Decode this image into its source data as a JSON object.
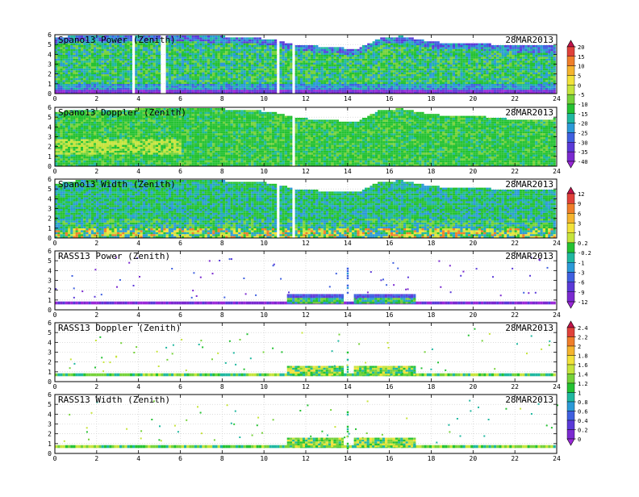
{
  "figure": {
    "date_label": "28MAR2013",
    "panel_titles": [
      "Spano13 Power (Zenith)",
      "Spano13 Doppler (Zenith)",
      "Spano13 Width (Zenith)",
      "RASS13 Power (Zenith)",
      "RASS13 Doppler (Zenith)",
      "RASS13 Width (Zenith)"
    ]
  },
  "chart_data": [
    {
      "type": "heatmap",
      "title": "Spano13 Power (Zenith)",
      "annotation": "28MAR2013",
      "x_ticks": [
        0,
        2,
        4,
        6,
        8,
        10,
        12,
        14,
        16,
        18,
        20,
        22,
        24
      ],
      "y_ticks": [
        0,
        1,
        2,
        3,
        4,
        5,
        6
      ],
      "xlim": [
        0,
        24
      ],
      "ylim": [
        0,
        6
      ],
      "colorbar": "power",
      "coverage": "dense_profiler",
      "top_height_profile": [
        [
          0,
          5.7
        ],
        [
          1,
          6.0
        ],
        [
          2.4,
          5.9
        ],
        [
          6,
          6.0
        ],
        [
          9.4,
          5.8
        ],
        [
          10.5,
          5.5
        ],
        [
          11.6,
          5.0
        ],
        [
          12.5,
          4.9
        ],
        [
          14.4,
          4.6
        ],
        [
          15.5,
          5.7
        ],
        [
          16.5,
          5.9
        ],
        [
          18,
          5.3
        ],
        [
          20,
          5.2
        ],
        [
          22,
          4.9
        ],
        [
          24,
          4.9
        ]
      ],
      "gaps": [
        [
          3.6,
          3.8
        ],
        [
          5.0,
          5.2
        ],
        [
          10.5,
          10.7
        ],
        [
          11.3,
          11.4
        ]
      ]
    },
    {
      "type": "heatmap",
      "title": "Spano13 Doppler (Zenith)",
      "annotation": "28MAR2013",
      "x_ticks": [
        0,
        2,
        4,
        6,
        8,
        10,
        12,
        14,
        16,
        18,
        20,
        22,
        24
      ],
      "y_ticks": [
        0,
        1,
        2,
        3,
        4,
        5,
        6
      ],
      "xlim": [
        0,
        24
      ],
      "ylim": [
        0,
        6
      ],
      "colorbar": "power",
      "coverage": "dense_doppler",
      "top_height_profile": [
        [
          0,
          5.6
        ],
        [
          1,
          5.8
        ],
        [
          2.4,
          5.8
        ],
        [
          6,
          6.0
        ],
        [
          9.4,
          5.8
        ],
        [
          10.5,
          5.5
        ],
        [
          11.6,
          5.0
        ],
        [
          12.5,
          4.8
        ],
        [
          14.4,
          4.6
        ],
        [
          15.5,
          5.8
        ],
        [
          16.5,
          5.9
        ],
        [
          18,
          5.3
        ],
        [
          20,
          5.2
        ],
        [
          22,
          4.8
        ],
        [
          24,
          4.9
        ]
      ],
      "gaps": [
        [
          11.3,
          11.4
        ]
      ]
    },
    {
      "type": "heatmap",
      "title": "Spano13 Width (Zenith)",
      "annotation": "28MAR2013",
      "x_ticks": [
        0,
        2,
        4,
        6,
        8,
        10,
        12,
        14,
        16,
        18,
        20,
        22,
        24
      ],
      "y_ticks": [
        0,
        1,
        2,
        3,
        4,
        5,
        6
      ],
      "xlim": [
        0,
        24
      ],
      "ylim": [
        0,
        6
      ],
      "colorbar": "width",
      "coverage": "dense_width",
      "top_height_profile": [
        [
          0,
          5.6
        ],
        [
          1,
          5.9
        ],
        [
          2.4,
          5.9
        ],
        [
          6,
          6.0
        ],
        [
          9.4,
          5.8
        ],
        [
          10.5,
          5.6
        ],
        [
          11.6,
          5.0
        ],
        [
          12.5,
          4.9
        ],
        [
          14.4,
          4.7
        ],
        [
          15.5,
          5.8
        ],
        [
          16.5,
          5.9
        ],
        [
          18,
          5.3
        ],
        [
          20,
          5.2
        ],
        [
          22,
          4.9
        ],
        [
          24,
          4.9
        ]
      ],
      "gaps": [
        [
          10.5,
          10.7
        ],
        [
          11.3,
          11.4
        ]
      ]
    },
    {
      "type": "heatmap",
      "title": "RASS13 Power (Zenith)",
      "annotation": "28MAR2013",
      "x_ticks": [
        0,
        2,
        4,
        6,
        8,
        10,
        12,
        14,
        16,
        18,
        20,
        22,
        24
      ],
      "y_ticks": [
        0,
        1,
        2,
        3,
        4,
        5,
        6
      ],
      "xlim": [
        0,
        24
      ],
      "ylim": [
        0,
        6
      ],
      "colorbar": "width",
      "coverage": "rass_power",
      "block_hours": [
        [
          11.1,
          13.7
        ],
        [
          14.3,
          17.2
        ]
      ],
      "block_height": [
        0.8,
        1.6
      ]
    },
    {
      "type": "heatmap",
      "title": "RASS13 Doppler (Zenith)",
      "annotation": "28MAR2013",
      "x_ticks": [
        0,
        2,
        4,
        6,
        8,
        10,
        12,
        14,
        16,
        18,
        20,
        22,
        24
      ],
      "y_ticks": [
        0,
        1,
        2,
        3,
        4,
        5,
        6
      ],
      "xlim": [
        0,
        24
      ],
      "ylim": [
        0,
        6
      ],
      "colorbar": "rass",
      "coverage": "rass_doppler",
      "block_hours": [
        [
          11.1,
          13.7
        ],
        [
          14.3,
          17.2
        ]
      ],
      "block_height": [
        0.8,
        1.6
      ]
    },
    {
      "type": "heatmap",
      "title": "RASS13 Width (Zenith)",
      "annotation": "28MAR2013",
      "x_ticks": [
        0,
        2,
        4,
        6,
        8,
        10,
        12,
        14,
        16,
        18,
        20,
        22,
        24
      ],
      "y_ticks": [
        0,
        1,
        2,
        3,
        4,
        5,
        6
      ],
      "xlim": [
        0,
        24
      ],
      "ylim": [
        0,
        6
      ],
      "colorbar": "rass",
      "coverage": "rass_width",
      "block_hours": [
        [
          11.1,
          13.7
        ],
        [
          14.3,
          17.2
        ]
      ],
      "block_height": [
        0.8,
        1.6
      ]
    }
  ],
  "colorbars": {
    "power": {
      "labels": [
        "20",
        "15",
        "10",
        "5",
        "0",
        "-5",
        "-10",
        "-15",
        "-20",
        "-25",
        "-30",
        "-35",
        "-40"
      ],
      "colors": [
        "#c0134a",
        "#e0413a",
        "#f07e2a",
        "#f5b42e",
        "#f2e23a",
        "#c6e43c",
        "#76d23a",
        "#25c233",
        "#20b8a0",
        "#2c9ad8",
        "#4060e0",
        "#5b3ad8",
        "#7b2ad0",
        "#9a28d8"
      ]
    },
    "width": {
      "labels": [
        "12",
        "9",
        "6",
        "3",
        "1",
        "0.2",
        "-0.2",
        "-1",
        "-3",
        "-6",
        "-9",
        "-12"
      ],
      "colors": [
        "#c0134a",
        "#e0413a",
        "#f07e2a",
        "#f5b42e",
        "#f2e23a",
        "#c6e43c",
        "#25c233",
        "#20b8a0",
        "#2c9ad8",
        "#4060e0",
        "#5b3ad8",
        "#7b2ad0",
        "#9a28d8"
      ]
    },
    "rass": {
      "labels": [
        "2.4",
        "2.2",
        "2",
        "1.8",
        "1.6",
        "1.4",
        "1.2",
        "1",
        "0.8",
        "0.6",
        "0.4",
        "0.2",
        "0"
      ],
      "colors": [
        "#c0134a",
        "#e0413a",
        "#f07e2a",
        "#f5b42e",
        "#f2e23a",
        "#c6e43c",
        "#76d23a",
        "#25c233",
        "#20b8a0",
        "#2c9ad8",
        "#4060e0",
        "#5b3ad8",
        "#7b2ad0",
        "#9a28d8"
      ]
    }
  }
}
